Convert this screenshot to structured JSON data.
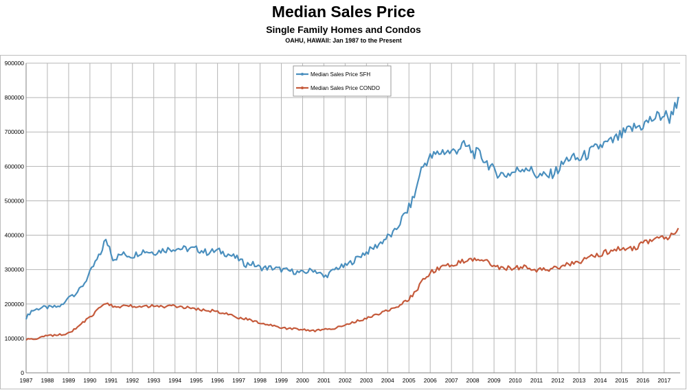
{
  "header": {
    "title": "Median Sales Price",
    "subtitle": "Single Family Homes and Condos",
    "subtitle2": "OAHU, HAWAII: Jan 1987 to the Present"
  },
  "chart_data": {
    "type": "line",
    "title": "Median Sales Price",
    "subtitle": "Single Family Homes and Condos",
    "xlabel": "",
    "ylabel": "",
    "xlim": [
      1987,
      2017.75
    ],
    "ylim": [
      0,
      900000
    ],
    "x_ticks": [
      "1987",
      "1988",
      "1989",
      "1990",
      "1991",
      "1992",
      "1993",
      "1994",
      "1995",
      "1996",
      "1997",
      "1998",
      "1999",
      "2000",
      "2001",
      "2002",
      "2003",
      "2004",
      "2005",
      "2006",
      "2007",
      "2008",
      "2009",
      "2010",
      "2011",
      "2012",
      "2013",
      "2014",
      "2015",
      "2016",
      "2017"
    ],
    "y_ticks": [
      "0",
      "100000",
      "200000",
      "300000",
      "400000",
      "500000",
      "600000",
      "700000",
      "800000",
      "900000"
    ],
    "grid": true,
    "legend_position": "top-center",
    "series": [
      {
        "name": "Median Sales Price SFH",
        "color": "#4A8FBE",
        "points": [
          [
            1987.0,
            160000
          ],
          [
            1987.25,
            180000
          ],
          [
            1987.5,
            185000
          ],
          [
            1987.75,
            190000
          ],
          [
            1988.0,
            190000
          ],
          [
            1988.5,
            192000
          ],
          [
            1988.8,
            200000
          ],
          [
            1989.0,
            225000
          ],
          [
            1989.25,
            228000
          ],
          [
            1989.5,
            240000
          ],
          [
            1989.75,
            262000
          ],
          [
            1990.0,
            290000
          ],
          [
            1990.25,
            320000
          ],
          [
            1990.5,
            345000
          ],
          [
            1990.7,
            385000
          ],
          [
            1990.9,
            370000
          ],
          [
            1991.1,
            330000
          ],
          [
            1991.5,
            345000
          ],
          [
            1992.0,
            340000
          ],
          [
            1992.5,
            355000
          ],
          [
            1993.0,
            350000
          ],
          [
            1993.5,
            358000
          ],
          [
            1994.0,
            362000
          ],
          [
            1994.5,
            360000
          ],
          [
            1995.0,
            360000
          ],
          [
            1995.5,
            350000
          ],
          [
            1996.0,
            355000
          ],
          [
            1996.5,
            345000
          ],
          [
            1997.0,
            330000
          ],
          [
            1997.3,
            315000
          ],
          [
            1997.6,
            318000
          ],
          [
            1998.0,
            305000
          ],
          [
            1998.5,
            305000
          ],
          [
            1999.0,
            300000
          ],
          [
            1999.5,
            295000
          ],
          [
            2000.0,
            290000
          ],
          [
            2000.5,
            300000
          ],
          [
            2000.8,
            290000
          ],
          [
            2001.0,
            278000
          ],
          [
            2001.3,
            290000
          ],
          [
            2001.6,
            305000
          ],
          [
            2002.0,
            310000
          ],
          [
            2002.5,
            330000
          ],
          [
            2002.8,
            345000
          ],
          [
            2003.0,
            350000
          ],
          [
            2003.5,
            370000
          ],
          [
            2004.0,
            395000
          ],
          [
            2004.3,
            405000
          ],
          [
            2004.6,
            440000
          ],
          [
            2005.0,
            480000
          ],
          [
            2005.3,
            520000
          ],
          [
            2005.5,
            580000
          ],
          [
            2005.8,
            615000
          ],
          [
            2006.0,
            625000
          ],
          [
            2006.3,
            635000
          ],
          [
            2006.6,
            645000
          ],
          [
            2007.0,
            640000
          ],
          [
            2007.5,
            660000
          ],
          [
            2007.8,
            655000
          ],
          [
            2008.0,
            640000
          ],
          [
            2008.3,
            635000
          ],
          [
            2008.7,
            610000
          ],
          [
            2009.0,
            585000
          ],
          [
            2009.5,
            575000
          ],
          [
            2010.0,
            585000
          ],
          [
            2010.5,
            600000
          ],
          [
            2011.0,
            575000
          ],
          [
            2011.5,
            570000
          ],
          [
            2012.0,
            590000
          ],
          [
            2012.5,
            625000
          ],
          [
            2013.0,
            620000
          ],
          [
            2013.5,
            640000
          ],
          [
            2014.0,
            660000
          ],
          [
            2014.5,
            670000
          ],
          [
            2015.0,
            690000
          ],
          [
            2015.5,
            710000
          ],
          [
            2016.0,
            720000
          ],
          [
            2016.5,
            740000
          ],
          [
            2017.0,
            750000
          ],
          [
            2017.3,
            740000
          ],
          [
            2017.5,
            785000
          ],
          [
            2017.7,
            785000
          ]
        ]
      },
      {
        "name": "Median Sales Price CONDO",
        "color": "#C55A3B",
        "points": [
          [
            1987.0,
            97000
          ],
          [
            1987.5,
            100000
          ],
          [
            1988.0,
            108000
          ],
          [
            1988.5,
            110000
          ],
          [
            1989.0,
            115000
          ],
          [
            1989.25,
            125000
          ],
          [
            1989.5,
            138000
          ],
          [
            1989.75,
            150000
          ],
          [
            1990.0,
            160000
          ],
          [
            1990.25,
            175000
          ],
          [
            1990.5,
            190000
          ],
          [
            1990.8,
            205000
          ],
          [
            1991.0,
            195000
          ],
          [
            1991.3,
            188000
          ],
          [
            1991.6,
            198000
          ],
          [
            1992.0,
            195000
          ],
          [
            1992.5,
            193000
          ],
          [
            1993.0,
            194000
          ],
          [
            1993.5,
            192000
          ],
          [
            1994.0,
            195000
          ],
          [
            1994.5,
            190000
          ],
          [
            1995.0,
            185000
          ],
          [
            1995.5,
            182000
          ],
          [
            1996.0,
            178000
          ],
          [
            1996.5,
            170000
          ],
          [
            1997.0,
            160000
          ],
          [
            1997.5,
            155000
          ],
          [
            1998.0,
            145000
          ],
          [
            1998.5,
            138000
          ],
          [
            1999.0,
            130000
          ],
          [
            1999.5,
            128000
          ],
          [
            2000.0,
            125000
          ],
          [
            2000.5,
            122000
          ],
          [
            2001.0,
            125000
          ],
          [
            2001.5,
            130000
          ],
          [
            2002.0,
            138000
          ],
          [
            2002.5,
            150000
          ],
          [
            2003.0,
            158000
          ],
          [
            2003.5,
            170000
          ],
          [
            2004.0,
            182000
          ],
          [
            2004.5,
            195000
          ],
          [
            2005.0,
            215000
          ],
          [
            2005.3,
            235000
          ],
          [
            2005.6,
            265000
          ],
          [
            2006.0,
            292000
          ],
          [
            2006.5,
            305000
          ],
          [
            2007.0,
            315000
          ],
          [
            2007.5,
            325000
          ],
          [
            2008.0,
            330000
          ],
          [
            2008.5,
            328000
          ],
          [
            2009.0,
            310000
          ],
          [
            2009.5,
            305000
          ],
          [
            2010.0,
            305000
          ],
          [
            2010.5,
            310000
          ],
          [
            2011.0,
            300000
          ],
          [
            2011.5,
            300000
          ],
          [
            2012.0,
            305000
          ],
          [
            2012.5,
            315000
          ],
          [
            2013.0,
            320000
          ],
          [
            2013.5,
            335000
          ],
          [
            2014.0,
            345000
          ],
          [
            2014.5,
            355000
          ],
          [
            2015.0,
            360000
          ],
          [
            2015.5,
            360000
          ],
          [
            2016.0,
            375000
          ],
          [
            2016.5,
            390000
          ],
          [
            2017.0,
            390000
          ],
          [
            2017.3,
            400000
          ],
          [
            2017.5,
            410000
          ],
          [
            2017.7,
            420000
          ]
        ]
      }
    ]
  }
}
